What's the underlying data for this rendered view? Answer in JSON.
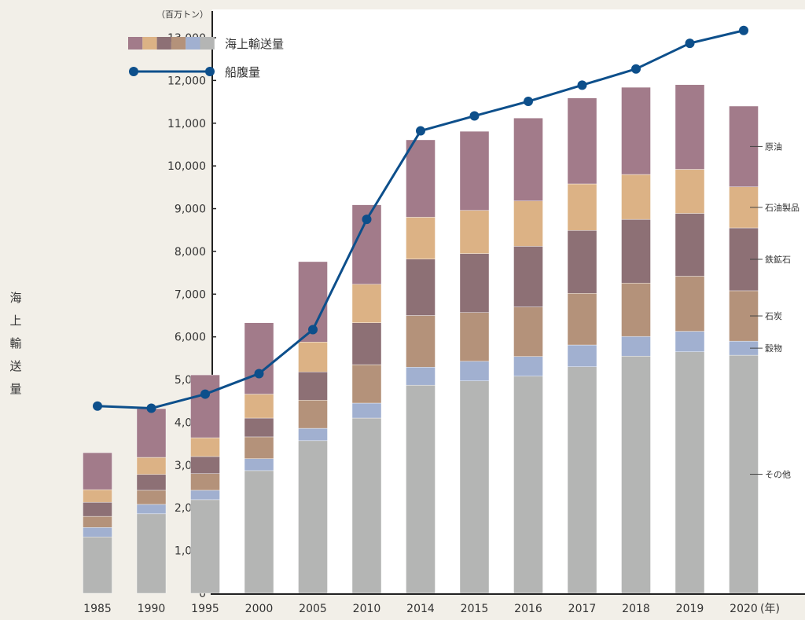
{
  "chart_data": {
    "type": "bar",
    "stacked": true,
    "title": "",
    "unit_label": "（百万トン）",
    "xlabel": "",
    "x_unit_label": "（年）",
    "ylabel": "海上輸送量",
    "ylim": [
      0,
      13000
    ],
    "yticks": [
      0,
      1000,
      2000,
      3000,
      4000,
      5000,
      6000,
      7000,
      8000,
      9000,
      10000,
      11000,
      12000,
      13000
    ],
    "ytick_labels": [
      "0",
      "1,000",
      "2,000",
      "3,000",
      "4,000",
      "5,000",
      "6,000",
      "7,000",
      "8,000",
      "9,000",
      "10,000",
      "11,000",
      "12,000",
      "13,000"
    ],
    "grid": false,
    "categories": [
      "1985",
      "1990",
      "1995",
      "2000",
      "2005",
      "2010",
      "2014",
      "2015",
      "2016",
      "2017",
      "2018",
      "2019",
      "2020"
    ],
    "series": [
      {
        "name": "その他",
        "color": "#b4b5b4",
        "values": [
          1320,
          1860,
          2190,
          2870,
          3570,
          4100,
          4870,
          4970,
          5080,
          5300,
          5550,
          5650,
          5570
        ]
      },
      {
        "name": "穀物",
        "color": "#a1b0d0",
        "values": [
          220,
          220,
          220,
          280,
          290,
          350,
          420,
          460,
          460,
          510,
          460,
          480,
          330
        ]
      },
      {
        "name": "石炭",
        "color": "#b4927a",
        "values": [
          260,
          330,
          390,
          510,
          660,
          900,
          1210,
          1140,
          1160,
          1210,
          1250,
          1290,
          1180
        ]
      },
      {
        "name": "鉄鉱石",
        "color": "#8d7075",
        "values": [
          330,
          370,
          400,
          440,
          660,
          980,
          1320,
          1380,
          1420,
          1470,
          1490,
          1470,
          1470
        ]
      },
      {
        "name": "石油製品",
        "color": "#dcb285",
        "values": [
          295,
          400,
          440,
          560,
          700,
          900,
          980,
          1010,
          1060,
          1090,
          1050,
          1030,
          960
        ]
      },
      {
        "name": "原油",
        "color": "#a27b8a",
        "values": [
          865,
          1140,
          1470,
          1670,
          1880,
          1860,
          1810,
          1850,
          1940,
          2010,
          2040,
          1980,
          1890
        ]
      }
    ],
    "line_series": {
      "name": "船腹量",
      "color": "#0d4f8b",
      "values": [
        4380,
        4330,
        4660,
        5140,
        6170,
        8750,
        10820,
        11170,
        11510,
        11890,
        12270,
        12870,
        13170
      ]
    },
    "legend": {
      "position": "top-left",
      "entries": [
        {
          "label": "海上輸送量",
          "type": "stacked-swatch",
          "colors": [
            "#a27b8a",
            "#dcb285",
            "#8d7075",
            "#b4927a",
            "#a1b0d0",
            "#b4b5b4"
          ]
        },
        {
          "label": "船腹量",
          "type": "line-marker",
          "color": "#0d4f8b"
        }
      ]
    },
    "annotations": {
      "category": "2020",
      "labels": [
        "その他",
        "穀物",
        "石炭",
        "鉄鉱石",
        "石油製品",
        "原油"
      ]
    }
  },
  "colors": {
    "background": "#f2efe8",
    "plot_background": "#ffffff",
    "axis": "#222222"
  }
}
